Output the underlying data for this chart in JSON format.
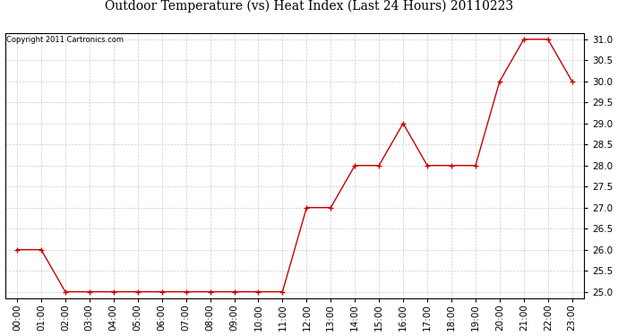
{
  "title": "Outdoor Temperature (vs) Heat Index (Last 24 Hours) 20110223",
  "copyright_text": "Copyright 2011 Cartronics.com",
  "x_labels": [
    "00:00",
    "01:00",
    "02:00",
    "03:00",
    "04:00",
    "05:00",
    "06:00",
    "07:00",
    "08:00",
    "09:00",
    "10:00",
    "11:00",
    "12:00",
    "13:00",
    "14:00",
    "15:00",
    "16:00",
    "17:00",
    "18:00",
    "19:00",
    "20:00",
    "21:00",
    "22:00",
    "23:00"
  ],
  "y_values": [
    26.0,
    26.0,
    25.0,
    25.0,
    25.0,
    25.0,
    25.0,
    25.0,
    25.0,
    25.0,
    25.0,
    25.0,
    27.0,
    27.0,
    28.0,
    28.0,
    29.0,
    28.0,
    28.0,
    28.0,
    30.0,
    31.0,
    31.0,
    30.0
  ],
  "ylim": [
    24.85,
    31.15
  ],
  "yticks": [
    25.0,
    25.5,
    26.0,
    26.5,
    27.0,
    27.5,
    28.0,
    28.5,
    29.0,
    29.5,
    30.0,
    30.5,
    31.0
  ],
  "line_color": "#cc0000",
  "marker": "+",
  "marker_size": 5,
  "marker_color": "#cc0000",
  "bg_color": "#ffffff",
  "grid_color": "#cccccc",
  "title_fontsize": 10,
  "copyright_fontsize": 6,
  "tick_fontsize": 7.5
}
